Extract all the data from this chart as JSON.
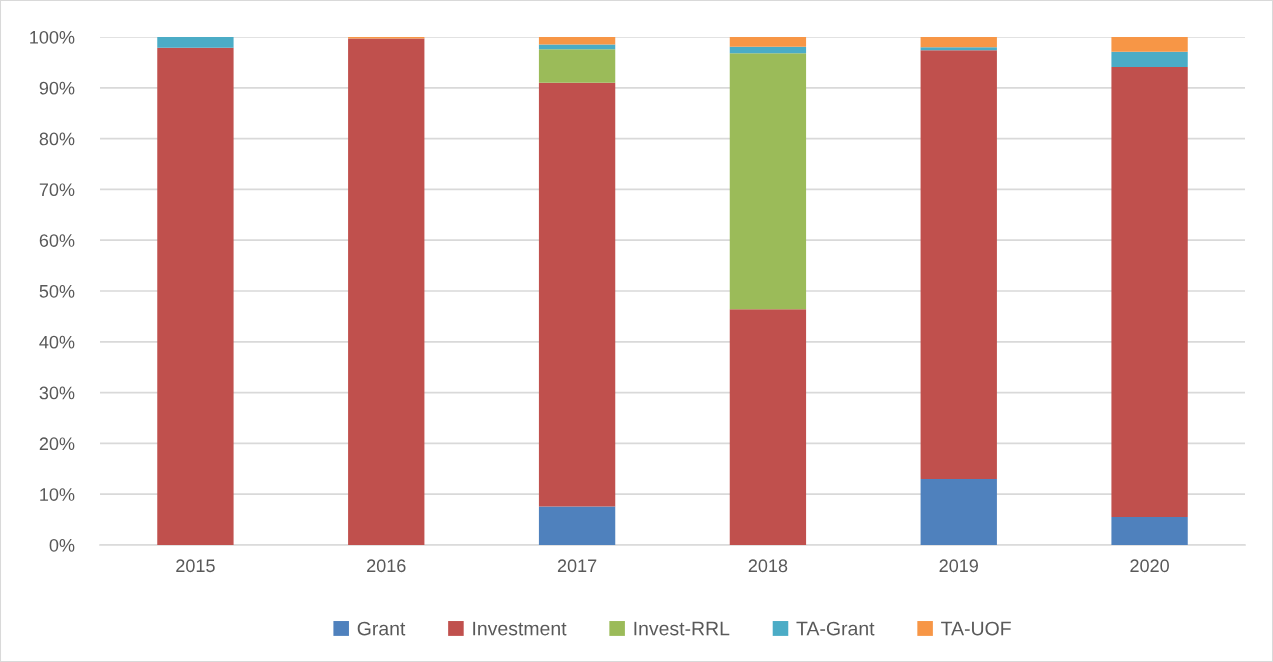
{
  "chart_data": {
    "type": "bar",
    "stacked": true,
    "categories": [
      "2015",
      "2016",
      "2017",
      "2018",
      "2019",
      "2020"
    ],
    "series": [
      {
        "name": "Grant",
        "color": "#4f81bd",
        "values": [
          0,
          0,
          7.6,
          0,
          13.0,
          5.5
        ]
      },
      {
        "name": "Investment",
        "color": "#c0504d",
        "values": [
          97.9,
          99.7,
          83.4,
          46.4,
          84.4,
          88.6
        ]
      },
      {
        "name": "Invest-RRL",
        "color": "#9bbb59",
        "values": [
          0,
          0,
          6.6,
          50.4,
          0,
          0
        ]
      },
      {
        "name": "TA-Grant",
        "color": "#4bacc6",
        "values": [
          2.1,
          0,
          0.9,
          1.3,
          0.6,
          3.0
        ]
      },
      {
        "name": "TA-UOF",
        "color": "#f79646",
        "values": [
          0,
          0.3,
          1.5,
          1.9,
          2.0,
          2.9
        ]
      }
    ],
    "ylim": [
      0,
      100
    ],
    "yticks": [
      {
        "value": 0,
        "label": "0%"
      },
      {
        "value": 10,
        "label": "10%"
      },
      {
        "value": 20,
        "label": "20%"
      },
      {
        "value": 30,
        "label": "30%"
      },
      {
        "value": 40,
        "label": "40%"
      },
      {
        "value": 50,
        "label": "50%"
      },
      {
        "value": 60,
        "label": "60%"
      },
      {
        "value": 70,
        "label": "70%"
      },
      {
        "value": 80,
        "label": "80%"
      },
      {
        "value": 90,
        "label": "90%"
      },
      {
        "value": 100,
        "label": "100%"
      }
    ],
    "grid": "y",
    "legend": "bottom"
  }
}
